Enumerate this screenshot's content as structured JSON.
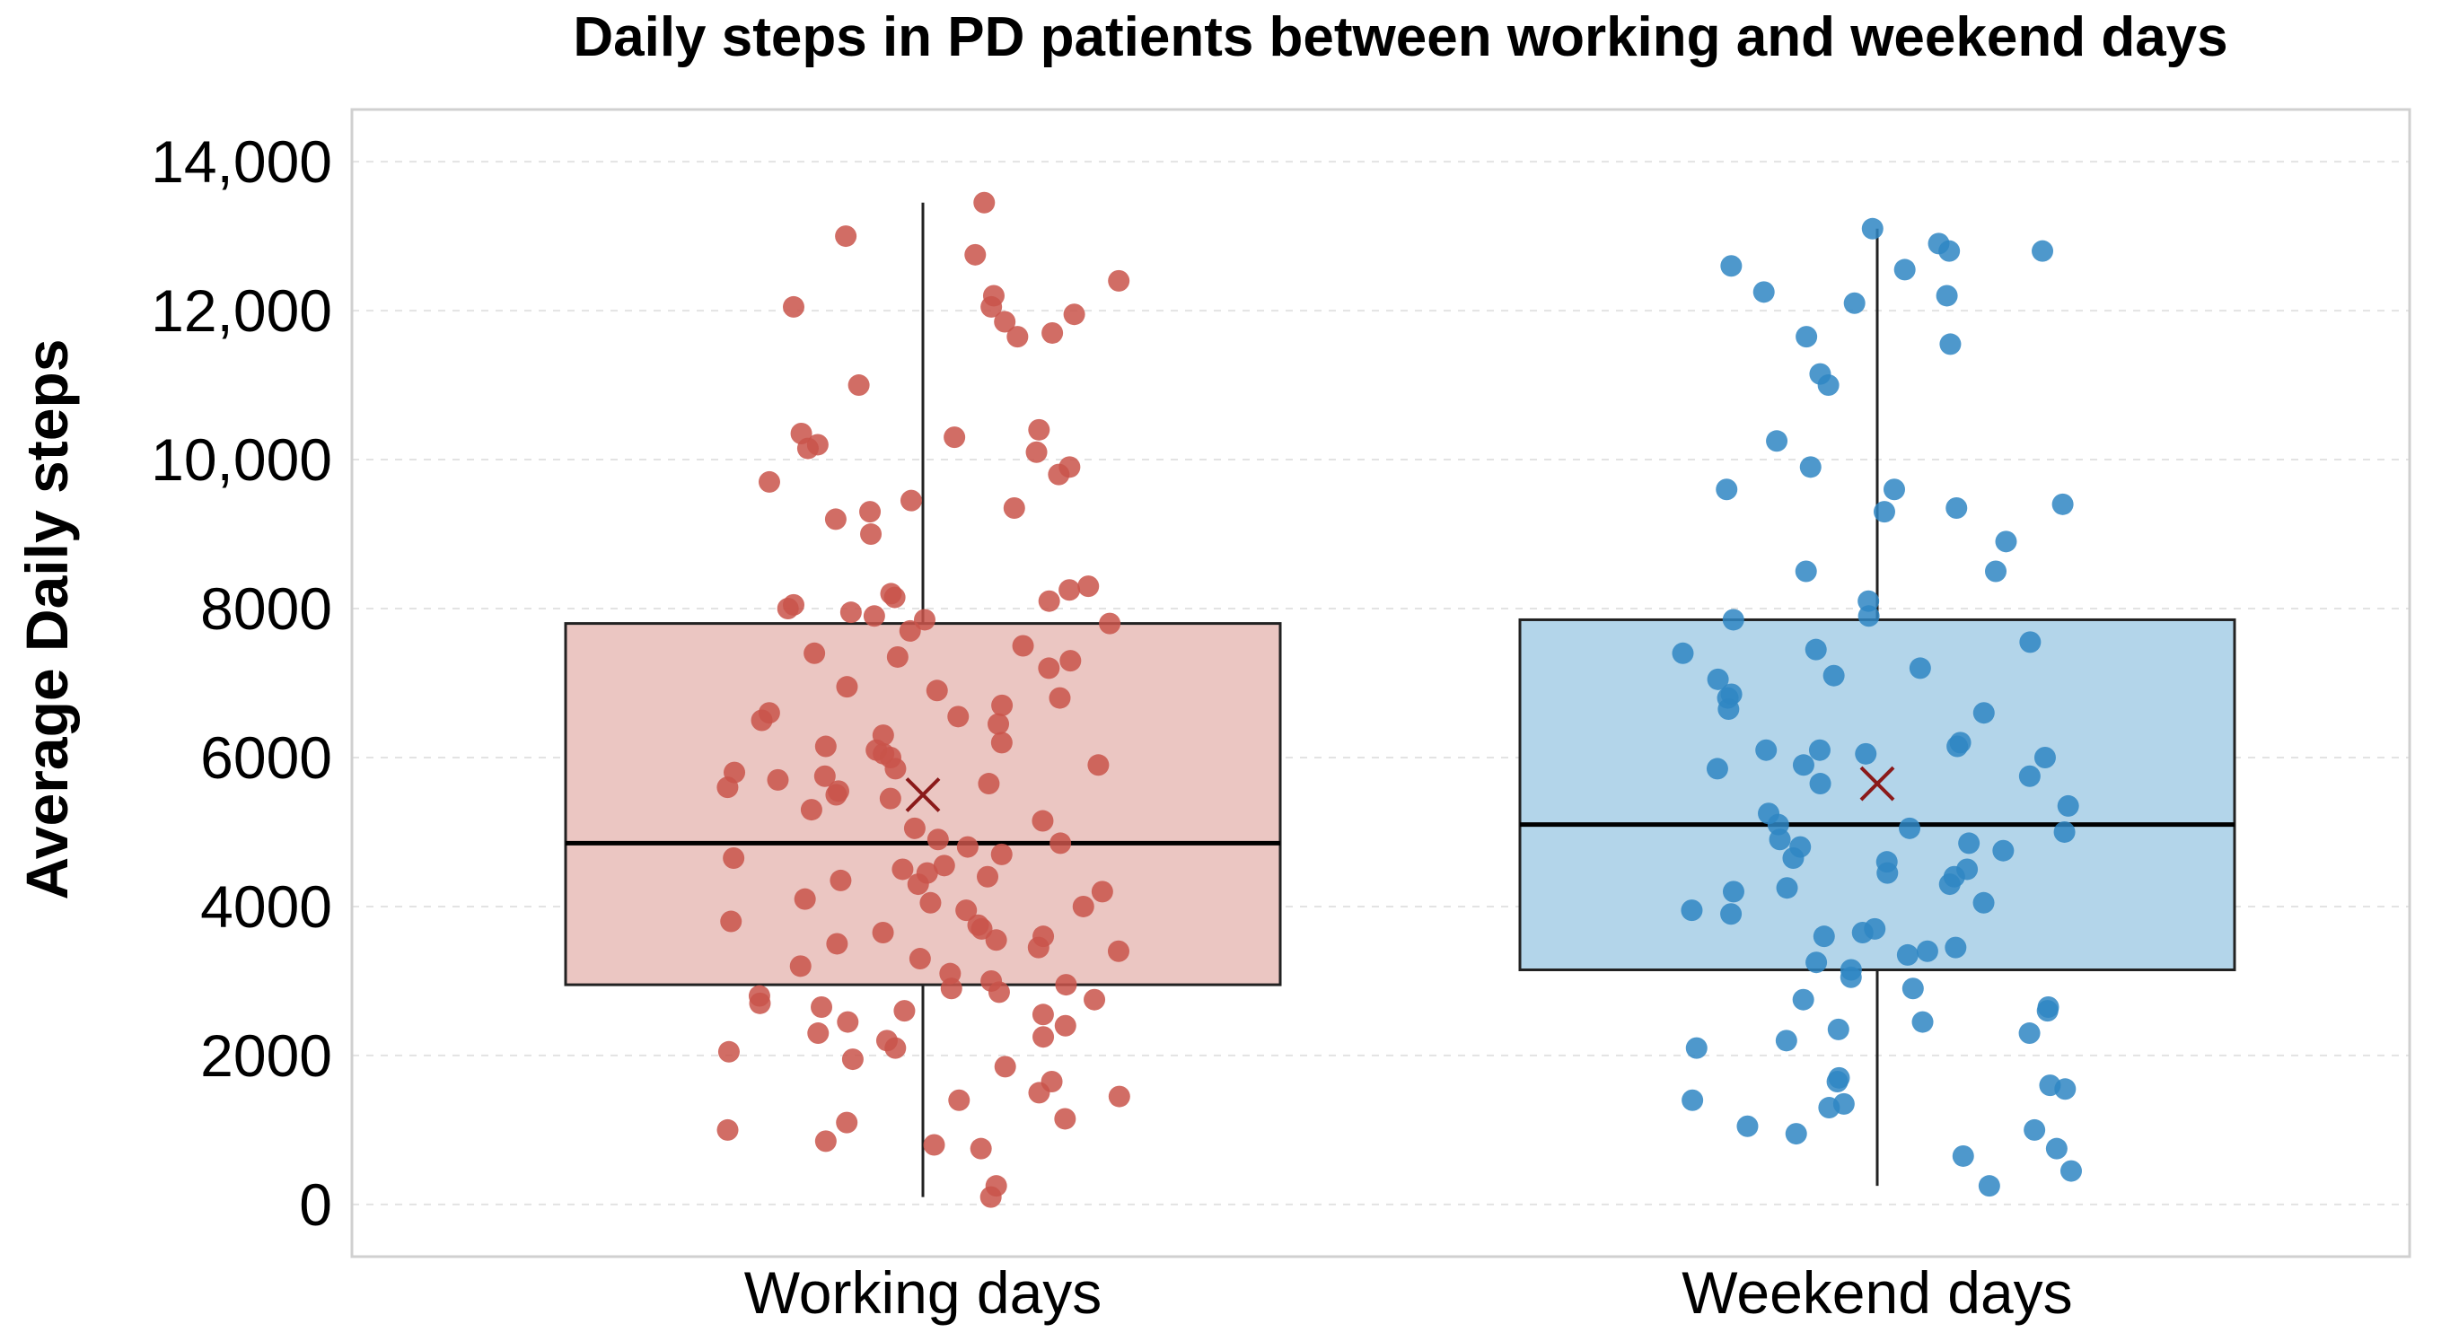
{
  "chart_data": {
    "type": "boxplot",
    "title": "Daily steps in PD patients between working and weekend days",
    "ylabel": "Average Daily steps",
    "xlabel": "",
    "ylim": [
      -700,
      14700
    ],
    "yticks": [
      0,
      2000,
      4000,
      6000,
      8000,
      10000,
      12000,
      14000
    ],
    "ytick_labels": [
      "0",
      "2000",
      "4000",
      "6000",
      "8000",
      "10,000",
      "12,000",
      "14,000"
    ],
    "grid": true,
    "categories": [
      "Working days",
      "Weekend days"
    ],
    "series": [
      {
        "category": "Working days",
        "color": "#c9544a",
        "box_fill": "#ebc6c2",
        "whisker_low": 100,
        "q1": 2950,
        "median": 4850,
        "q3": 7800,
        "whisker_high": 13450,
        "mean": 5500,
        "points": [
          13450,
          13000,
          12750,
          12400,
          12200,
          12050,
          12050,
          11950,
          11850,
          11700,
          11650,
          11000,
          10400,
          10350,
          10300,
          10200,
          10150,
          10100,
          9900,
          9800,
          9700,
          9450,
          9350,
          9300,
          9200,
          9000,
          8300,
          8250,
          8200,
          8150,
          8100,
          8050,
          8000,
          7950,
          7900,
          7850,
          7800,
          7700,
          7500,
          7400,
          7350,
          7300,
          7200,
          6950,
          6900,
          6800,
          6700,
          6600,
          6550,
          6500,
          6450,
          6300,
          6200,
          6150,
          6100,
          6050,
          6000,
          5900,
          5850,
          5800,
          5750,
          5700,
          5650,
          5600,
          5550,
          5500,
          5450,
          5300,
          5150,
          5050,
          4900,
          4850,
          4800,
          4700,
          4650,
          4550,
          4500,
          4450,
          4400,
          4350,
          4300,
          4200,
          4100,
          4050,
          4000,
          3950,
          3800,
          3750,
          3700,
          3650,
          3600,
          3550,
          3500,
          3450,
          3400,
          3300,
          3200,
          3100,
          3000,
          2950,
          2900,
          2850,
          2800,
          2750,
          2700,
          2650,
          2600,
          2550,
          2450,
          2400,
          2300,
          2250,
          2200,
          2100,
          2050,
          1950,
          1850,
          1650,
          1500,
          1450,
          1400,
          1150,
          1100,
          1000,
          850,
          800,
          750,
          250,
          100
        ]
      },
      {
        "category": "Weekend days",
        "color": "#2f86c3",
        "box_fill": "#b3d5ea",
        "whisker_low": 250,
        "q1": 3150,
        "median": 5100,
        "q3": 7850,
        "whisker_high": 13100,
        "mean": 5650,
        "points": [
          13100,
          12900,
          12800,
          12800,
          12600,
          12550,
          12250,
          12200,
          12100,
          11650,
          11550,
          11150,
          11000,
          10250,
          9900,
          9600,
          9600,
          9400,
          9350,
          9300,
          8900,
          8500,
          8500,
          8100,
          7900,
          7850,
          7550,
          7450,
          7400,
          7200,
          7100,
          7050,
          6850,
          6800,
          6650,
          6600,
          6200,
          6150,
          6100,
          6100,
          6050,
          6000,
          5900,
          5850,
          5750,
          5650,
          5350,
          5250,
          5100,
          5050,
          5000,
          4900,
          4850,
          4800,
          4750,
          4650,
          4600,
          4500,
          4450,
          4400,
          4300,
          4250,
          4200,
          4050,
          3950,
          3900,
          3700,
          3650,
          3600,
          3450,
          3400,
          3350,
          3250,
          3150,
          3050,
          2900,
          2750,
          2650,
          2600,
          2450,
          2350,
          2300,
          2200,
          2100,
          1700,
          1650,
          1600,
          1550,
          1400,
          1350,
          1300,
          1050,
          1000,
          950,
          750,
          650,
          450,
          250
        ]
      }
    ]
  }
}
